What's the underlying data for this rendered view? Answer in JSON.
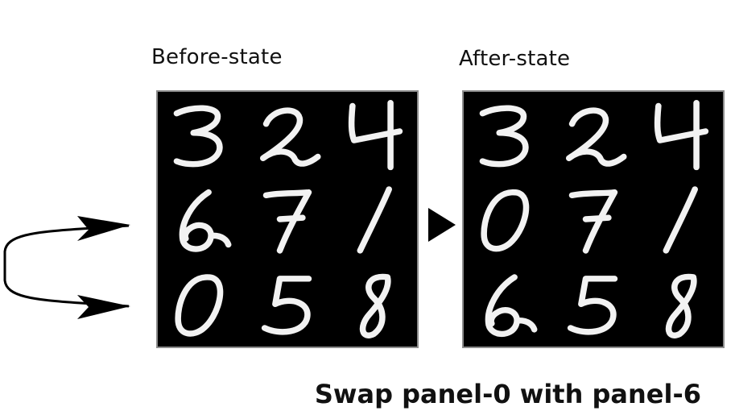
{
  "labels": {
    "before": "Before-state",
    "after": "After-state"
  },
  "caption": "Swap panel-0 with panel-6",
  "grids": {
    "before": [
      "3",
      "2",
      "4",
      "6",
      "7",
      "1",
      "0",
      "5",
      "8"
    ],
    "after": [
      "3",
      "2",
      "4",
      "0",
      "7",
      "1",
      "6",
      "5",
      "8"
    ]
  },
  "colors": {
    "panel_background": "#000000",
    "digit_stroke": "#f2f2f2",
    "text": "#111111"
  },
  "icons": {
    "swap_arrow": "curved-double-arrow-icon",
    "transition_arrow": "triangle-right-icon"
  }
}
